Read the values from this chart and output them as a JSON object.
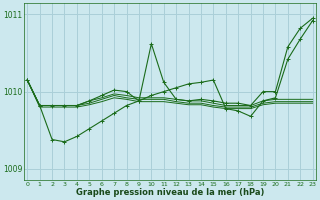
{
  "background_color": "#cce8ee",
  "grid_color": "#aacfd8",
  "line_color": "#1a6b1a",
  "xlabel": "Graphe pression niveau de la mer (hPa)",
  "xlabel_color": "#1a4a1a",
  "ylim": [
    1008.85,
    1011.15
  ],
  "xlim": [
    -0.3,
    23.3
  ],
  "yticks": [
    1009,
    1010,
    1011
  ],
  "xticks": [
    0,
    1,
    2,
    3,
    4,
    5,
    6,
    7,
    8,
    9,
    10,
    11,
    12,
    13,
    14,
    15,
    16,
    17,
    18,
    19,
    20,
    21,
    22,
    23
  ],
  "series_flat": [
    [
      1010.15,
      1009.82,
      1009.82,
      1009.82,
      1009.82,
      1009.88,
      1009.92,
      1009.97,
      1009.95,
      1009.92,
      1009.92,
      1009.92,
      1009.9,
      1009.88,
      1009.88,
      1009.85,
      1009.82,
      1009.82,
      1009.82,
      1009.88,
      1009.9,
      1009.9,
      1009.9,
      1009.9
    ],
    [
      1010.15,
      1009.82,
      1009.82,
      1009.82,
      1009.82,
      1009.85,
      1009.9,
      1009.95,
      1009.92,
      1009.9,
      1009.9,
      1009.9,
      1009.87,
      1009.85,
      1009.85,
      1009.82,
      1009.8,
      1009.8,
      1009.8,
      1009.85,
      1009.87,
      1009.87,
      1009.87,
      1009.87
    ],
    [
      1010.15,
      1009.8,
      1009.8,
      1009.8,
      1009.8,
      1009.83,
      1009.87,
      1009.92,
      1009.9,
      1009.87,
      1009.87,
      1009.87,
      1009.85,
      1009.83,
      1009.83,
      1009.8,
      1009.78,
      1009.78,
      1009.78,
      1009.83,
      1009.85,
      1009.85,
      1009.85,
      1009.85
    ]
  ],
  "series_peaked": [
    1010.15,
    1009.82,
    1009.82,
    1009.82,
    1009.82,
    1009.88,
    1009.95,
    1010.02,
    1010.0,
    1009.88,
    1010.62,
    1010.12,
    1009.9,
    1009.88,
    1009.9,
    1009.88,
    1009.85,
    1009.85,
    1009.82,
    1010.0,
    1010.0,
    1010.58,
    1010.82,
    1010.95
  ],
  "series_diagonal": [
    1010.15,
    1009.82,
    1009.38,
    1009.35,
    1009.42,
    1009.52,
    1009.62,
    1009.72,
    1009.82,
    1009.88,
    1009.95,
    1010.0,
    1010.05,
    1010.1,
    1010.12,
    1010.15,
    1009.78,
    1009.75,
    1009.68,
    1009.88,
    1009.92,
    1010.42,
    1010.68,
    1010.92
  ]
}
